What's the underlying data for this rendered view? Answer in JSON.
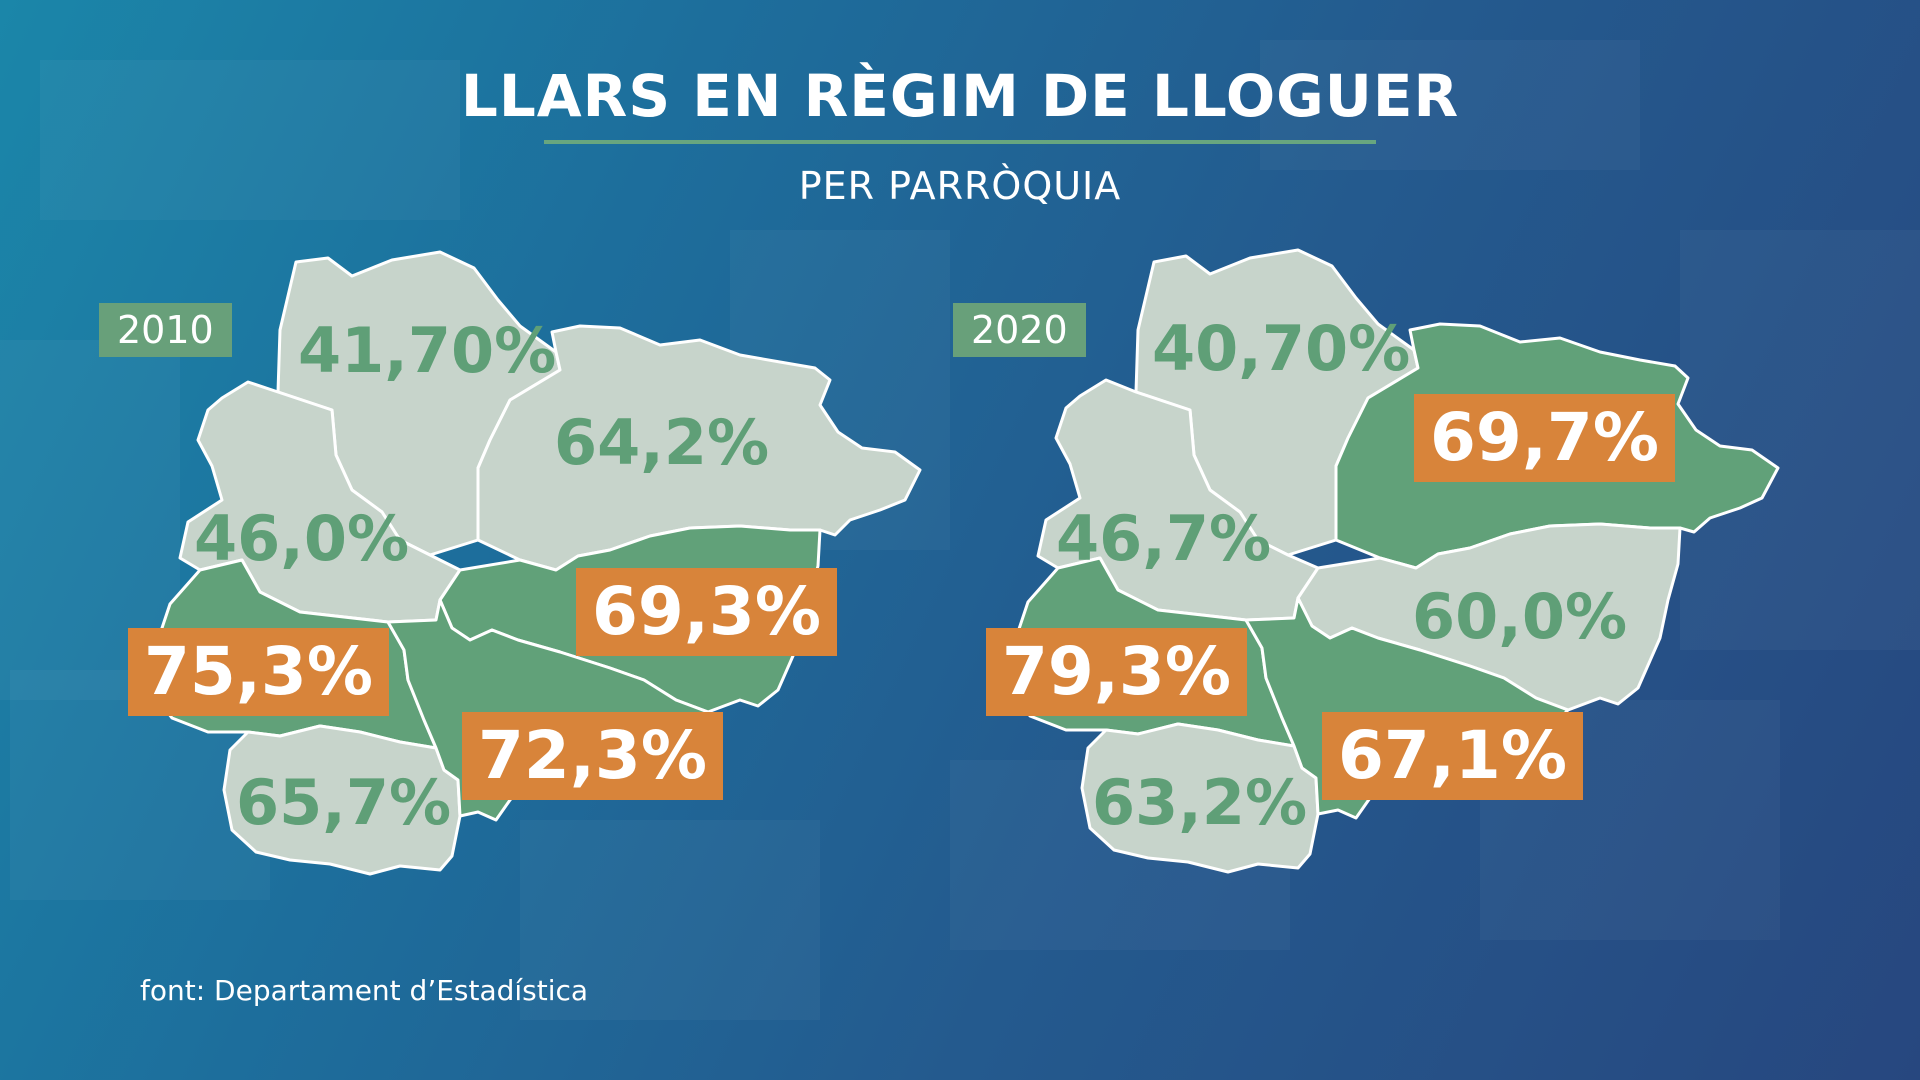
{
  "title": "LLARS EN RÈGIM DE LLOGUER",
  "subtitle": "PER PARRÒQUIA",
  "source": "font: Departament d’Estadística",
  "colors": {
    "region_light": "#c7d4cb",
    "region_highlight": "#61a179",
    "label_box": "#d8843a",
    "label_text": "#5f9f77",
    "accent_rule": "#68a67f"
  },
  "maps": [
    {
      "year": "2010",
      "parishes": {
        "north": {
          "value": "41,70%",
          "highlight": false
        },
        "northeast": {
          "value": "64,2%",
          "highlight": false
        },
        "west": {
          "value": "46,0%",
          "highlight": false
        },
        "east": {
          "value": "69,3%",
          "highlight": true
        },
        "southwest": {
          "value": "75,3%",
          "highlight": true
        },
        "south": {
          "value": "65,7%",
          "highlight": false
        },
        "southcentral": {
          "value": "72,3%",
          "highlight": true
        }
      }
    },
    {
      "year": "2020",
      "parishes": {
        "north": {
          "value": "40,70%",
          "highlight": false
        },
        "northeast": {
          "value": "69,7%",
          "highlight": true
        },
        "west": {
          "value": "46,7%",
          "highlight": false
        },
        "east": {
          "value": "60,0%",
          "highlight": false
        },
        "southwest": {
          "value": "79,3%",
          "highlight": true
        },
        "south": {
          "value": "63,2%",
          "highlight": false
        },
        "southcentral": {
          "value": "67,1%",
          "highlight": true
        }
      }
    }
  ]
}
